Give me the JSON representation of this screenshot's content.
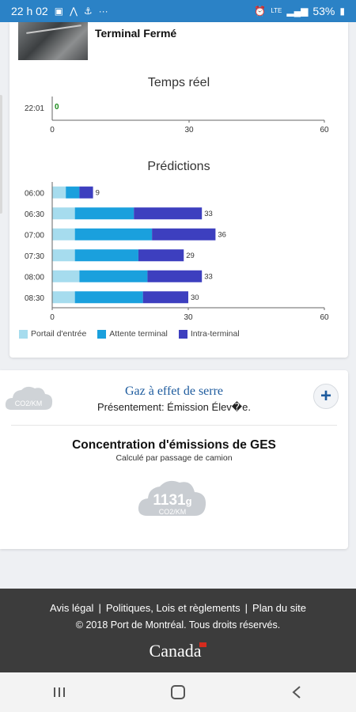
{
  "status_bar": {
    "time": "22 h 02",
    "battery": "53%",
    "network": "LTE"
  },
  "terminal": {
    "status": "Terminal Fermé"
  },
  "realtime": {
    "title": "Temps réel",
    "rows": [
      {
        "label": "22:01",
        "value": 0
      }
    ],
    "x_ticks": [
      "0",
      "30",
      "60"
    ]
  },
  "predictions": {
    "title": "Prédictions",
    "x_ticks": [
      "0",
      "30",
      "60"
    ]
  },
  "chart_data": {
    "type": "bar",
    "orientation": "horizontal",
    "stacked": true,
    "categories": [
      "06:00",
      "06:30",
      "07:00",
      "07:30",
      "08:00",
      "08:30"
    ],
    "series": [
      {
        "name": "Portail d'entrée",
        "values": [
          3,
          5,
          5,
          5,
          6,
          5
        ]
      },
      {
        "name": "Attente terminal",
        "values": [
          3,
          13,
          17,
          14,
          15,
          15
        ]
      },
      {
        "name": "Intra-terminal",
        "values": [
          3,
          15,
          14,
          10,
          12,
          10
        ]
      }
    ],
    "totals": [
      9,
      33,
      36,
      29,
      33,
      30
    ],
    "xlim": [
      0,
      60
    ],
    "colors": [
      "#a6dcee",
      "#1aa0dd",
      "#3d3fbf"
    ],
    "legend": "bottom-left"
  },
  "ges": {
    "cloud_label": "CO2/KM",
    "title": "Gaz à effet de serre",
    "subtitle": "Présentement: Émission Élev�e.",
    "plus_label": "+",
    "concentration_title": "Concentration d'émissions de GES",
    "concentration_sub": "Calculé par passage de camion",
    "value": "1131",
    "value_unit": "g",
    "value_label": "CO2/KM"
  },
  "footer": {
    "links": [
      "Avis légal",
      "Politiques, Lois et règlements",
      "Plan du site"
    ],
    "copyright": "© 2018 Port de Montréal. Tous droits réservés.",
    "wordmark": "Canada"
  }
}
